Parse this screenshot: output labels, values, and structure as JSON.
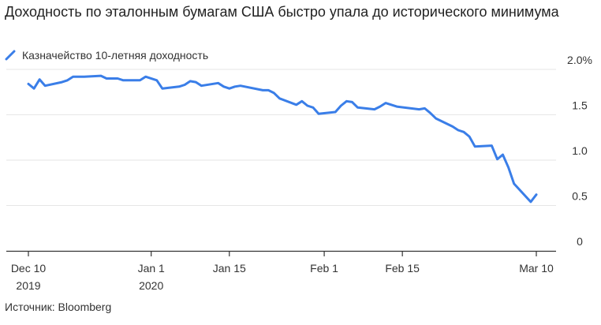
{
  "title": "Доходность по эталонным бумагам США быстро упала до исторического минимума",
  "source": "Источник: Bloomberg",
  "colors": {
    "line": "#3a7ee8",
    "grid": "#e6e6e6",
    "axis": "#333333"
  },
  "chart_data": {
    "type": "line",
    "title": "Доходность по эталонным бумагам США быстро упала до исторического минимума",
    "ylim": [
      0,
      2.0
    ],
    "y_ticks": [
      {
        "value": 2.0,
        "label": "2.0%"
      },
      {
        "value": 1.5,
        "label": "1.5"
      },
      {
        "value": 1.0,
        "label": "1.0"
      },
      {
        "value": 0.5,
        "label": "0.5"
      },
      {
        "value": 0,
        "label": "0"
      }
    ],
    "x_range": [
      "2019-12-10",
      "2020-03-10"
    ],
    "x_ticks": [
      {
        "date": "2019-12-10",
        "lines": [
          "Dec 10",
          "2019"
        ]
      },
      {
        "date": "2020-01-01",
        "lines": [
          "Jan 1",
          "2020"
        ]
      },
      {
        "date": "2020-01-15",
        "lines": [
          "Jan 15"
        ]
      },
      {
        "date": "2020-02-01",
        "lines": [
          "Feb 1"
        ]
      },
      {
        "date": "2020-02-15",
        "lines": [
          "Feb 15"
        ]
      },
      {
        "date": "2020-03-10",
        "lines": [
          "Mar 10"
        ]
      }
    ],
    "grid": true,
    "legend": "top-left",
    "series": [
      {
        "name": "Казначейство 10-летняя доходность",
        "points": [
          [
            "2019-12-10",
            1.84
          ],
          [
            "2019-12-11",
            1.79
          ],
          [
            "2019-12-12",
            1.89
          ],
          [
            "2019-12-13",
            1.82
          ],
          [
            "2019-12-16",
            1.86
          ],
          [
            "2019-12-17",
            1.88
          ],
          [
            "2019-12-18",
            1.92
          ],
          [
            "2019-12-19",
            1.92
          ],
          [
            "2019-12-20",
            1.92
          ],
          [
            "2019-12-23",
            1.93
          ],
          [
            "2019-12-24",
            1.9
          ],
          [
            "2019-12-26",
            1.9
          ],
          [
            "2019-12-27",
            1.88
          ],
          [
            "2019-12-30",
            1.88
          ],
          [
            "2019-12-31",
            1.92
          ],
          [
            "2020-01-02",
            1.88
          ],
          [
            "2020-01-03",
            1.79
          ],
          [
            "2020-01-06",
            1.81
          ],
          [
            "2020-01-07",
            1.83
          ],
          [
            "2020-01-08",
            1.87
          ],
          [
            "2020-01-09",
            1.86
          ],
          [
            "2020-01-10",
            1.82
          ],
          [
            "2020-01-13",
            1.85
          ],
          [
            "2020-01-14",
            1.81
          ],
          [
            "2020-01-15",
            1.79
          ],
          [
            "2020-01-16",
            1.81
          ],
          [
            "2020-01-17",
            1.82
          ],
          [
            "2020-01-21",
            1.77
          ],
          [
            "2020-01-22",
            1.77
          ],
          [
            "2020-01-23",
            1.74
          ],
          [
            "2020-01-24",
            1.68
          ],
          [
            "2020-01-27",
            1.61
          ],
          [
            "2020-01-28",
            1.65
          ],
          [
            "2020-01-29",
            1.6
          ],
          [
            "2020-01-30",
            1.58
          ],
          [
            "2020-01-31",
            1.51
          ],
          [
            "2020-02-03",
            1.53
          ],
          [
            "2020-02-04",
            1.6
          ],
          [
            "2020-02-05",
            1.65
          ],
          [
            "2020-02-06",
            1.64
          ],
          [
            "2020-02-07",
            1.58
          ],
          [
            "2020-02-10",
            1.56
          ],
          [
            "2020-02-11",
            1.59
          ],
          [
            "2020-02-12",
            1.63
          ],
          [
            "2020-02-13",
            1.61
          ],
          [
            "2020-02-14",
            1.59
          ],
          [
            "2020-02-18",
            1.56
          ],
          [
            "2020-02-19",
            1.57
          ],
          [
            "2020-02-20",
            1.52
          ],
          [
            "2020-02-21",
            1.46
          ],
          [
            "2020-02-24",
            1.37
          ],
          [
            "2020-02-25",
            1.33
          ],
          [
            "2020-02-26",
            1.31
          ],
          [
            "2020-02-27",
            1.26
          ],
          [
            "2020-02-28",
            1.15
          ],
          [
            "2020-03-02",
            1.16
          ],
          [
            "2020-03-03",
            1.01
          ],
          [
            "2020-03-04",
            1.06
          ],
          [
            "2020-03-05",
            0.92
          ],
          [
            "2020-03-06",
            0.74
          ],
          [
            "2020-03-09",
            0.54
          ],
          [
            "2020-03-10",
            0.62
          ]
        ]
      }
    ]
  }
}
